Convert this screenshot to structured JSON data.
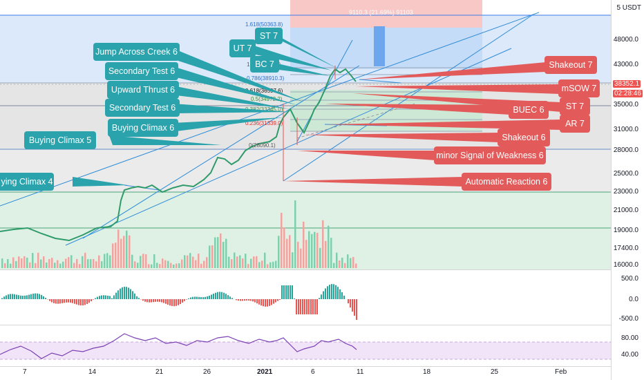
{
  "currency_label": "5 USDT",
  "price_ticks": [
    "48000.0",
    "43000.0",
    "35000.0",
    "31000.0",
    "28000.0",
    "25000.0",
    "23000.0",
    "21000.0",
    "19000.0",
    "17400.0",
    "16000.0"
  ],
  "current_price": "38352.1",
  "countdown": "02:28:46",
  "macd_ticks": [
    "500.0",
    "0.0",
    "-500.0"
  ],
  "rsi_ticks": [
    "80.00",
    "40.00"
  ],
  "time_labels": [
    "7",
    "14",
    "21",
    "26",
    "2021",
    "6",
    "11",
    "18",
    "25",
    "Feb"
  ],
  "measure_label": "9110.3 (21.69%) 91103",
  "fib_labels": {
    "f1618": "1.618(50363.8)",
    "f1": "1(",
    "f1b": ".3)",
    "f0786": "0.786(38910.3)",
    "f0618": "0.618(36597.6)",
    "f05": "0.5(34972.2)",
    "f0382": "0.382(33345.0)",
    "f0236": "0.236(31339.0)",
    "f0": "0(28090.1)"
  },
  "callouts": {
    "st7_top": "ST 7",
    "ut7": "UT 7",
    "bc7": "BC 7",
    "jump_across_creek": "Jump Across Creek 6",
    "secondary_test_a": "Secondary Test 6",
    "upward_thrust": "Upward Thrust 6",
    "secondary_test_b": "Secondary Test 6",
    "buying_climax_6": "Buying Climax 6",
    "buying_climax_5": "Buying Climax 5",
    "buying_climax_4": "ying Climax 4",
    "shakeout_7": "Shakeout 7",
    "msow_7": "mSOW 7",
    "st_7_right": "ST 7",
    "buec_6": "BUEC 6",
    "ar_7": "AR 7",
    "shakeout_6": "Shakeout 6",
    "minor_sow": "minor Signal of Weakness 6",
    "automatic_reaction": "Automatic Reaction 6"
  },
  "colors": {
    "teal": "#2aa3ad",
    "red": "#e35a5a",
    "up": "#26a69a",
    "down": "#ef5350",
    "blue_line": "#2962ff",
    "rsi": "#9c27b0"
  }
}
